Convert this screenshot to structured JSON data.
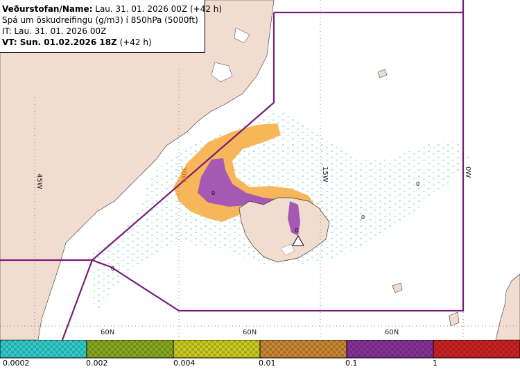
{
  "header": {
    "line1_label": "Veðurstofan/Name:",
    "line1_value": " Lau. 31. 01. 2026 00Z (+42 h)",
    "line2": "Spá um öskudreifingu (g/m3) í 850hPa (5000ft)",
    "line3": "IT: Lau. 31. 01. 2026 00Z",
    "line4_label": "VT: Sun. 01.02.2026 18Z",
    "line4_value": " (+42 h)"
  },
  "graticule": {
    "lon_labels": [
      "45W",
      "30W",
      "15W",
      "0W"
    ],
    "lat_labels": [
      "60N",
      "60N",
      "60N"
    ]
  },
  "legend": {
    "colors": [
      "#33cccc",
      "#88aa22",
      "#cccc22",
      "#cc8833",
      "#883399",
      "#cc2222"
    ],
    "tick_labels": [
      "0.0002",
      "0.002",
      "0.004",
      "0.01",
      "0.1",
      "1"
    ]
  },
  "map_labels": {
    "contour_value": "0"
  },
  "colors": {
    "land": "#f1ddcf",
    "sea": "#ffffff",
    "boundary": "#7a1a7a",
    "ash_light": "#bfe6f0",
    "ash_orange": "#f7b65a",
    "ash_purple": "#a45ab2"
  }
}
